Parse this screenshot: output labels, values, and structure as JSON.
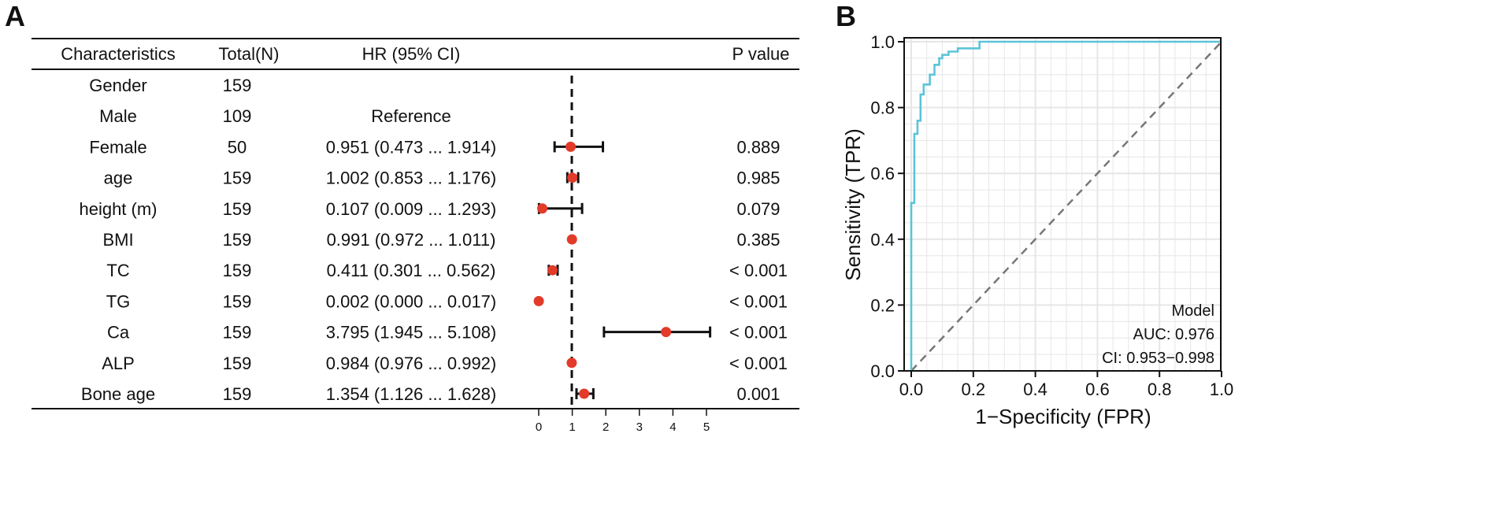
{
  "panel_a": {
    "letter": "A",
    "headers": {
      "characteristics": "Characteristics",
      "total": "Total(N)",
      "hr": "HR (95% CI)",
      "p": "P value"
    },
    "rows": [
      {
        "label": "Gender",
        "n": "159",
        "hr_text": "",
        "p": ""
      },
      {
        "label": "Male",
        "n": "109",
        "hr_text": "Reference",
        "p": ""
      },
      {
        "label": "Female",
        "n": "50",
        "hr_text": "0.951 (0.473 ... 1.914)",
        "p": "0.889"
      },
      {
        "label": "age",
        "n": "159",
        "hr_text": "1.002 (0.853 ... 1.176)",
        "p": "0.985"
      },
      {
        "label": "height (m)",
        "n": "159",
        "hr_text": "0.107 (0.009 ... 1.293)",
        "p": "0.079"
      },
      {
        "label": "BMI",
        "n": "159",
        "hr_text": "0.991 (0.972 ... 1.011)",
        "p": "0.385"
      },
      {
        "label": "TC",
        "n": "159",
        "hr_text": "0.411 (0.301 ... 0.562)",
        "p": "< 0.001"
      },
      {
        "label": "TG",
        "n": "159",
        "hr_text": "0.002 (0.000 ... 0.017)",
        "p": "< 0.001"
      },
      {
        "label": "Ca",
        "n": "159",
        "hr_text": "3.795 (1.945 ... 5.108)",
        "p": "< 0.001"
      },
      {
        "label": "ALP",
        "n": "159",
        "hr_text": "0.984 (0.976 ... 0.992)",
        "p": "< 0.001"
      },
      {
        "label": "Bone age",
        "n": "159",
        "hr_text": "1.354 (1.126 ... 1.628)",
        "p": "0.001"
      }
    ]
  },
  "panel_b": {
    "letter": "B",
    "legend": {
      "title": "Model",
      "auc": "AUC: 0.976",
      "ci": "CI: 0.953−0.998"
    }
  },
  "chart_data": [
    {
      "type": "forest",
      "title": "",
      "x_ticks": [
        0,
        1,
        2,
        3,
        4,
        5
      ],
      "x_tick_labels": [
        "0",
        "1",
        "2",
        "3",
        "4",
        "5"
      ],
      "xlim": [
        0,
        5
      ],
      "reference_line": 1,
      "categories": [
        "Gender",
        "Male",
        "Female",
        "age",
        "height (m)",
        "BMI",
        "TC",
        "TG",
        "Ca",
        "ALP",
        "Bone age"
      ],
      "hr": [
        null,
        null,
        0.951,
        1.002,
        0.107,
        0.991,
        0.411,
        0.002,
        3.795,
        0.984,
        1.354
      ],
      "ci_low": [
        null,
        null,
        0.473,
        0.853,
        0.009,
        0.972,
        0.301,
        0.0,
        1.945,
        0.976,
        1.126
      ],
      "ci_high": [
        null,
        null,
        1.914,
        1.176,
        1.293,
        1.011,
        0.562,
        0.017,
        5.108,
        0.992,
        1.628
      ],
      "point_color": "#e23b2a",
      "line_color": "#111111"
    },
    {
      "type": "line",
      "title": "",
      "xlabel": "1−Specificity (FPR)",
      "ylabel": "Sensitivity (TPR)",
      "xlim": [
        0,
        1
      ],
      "ylim": [
        0,
        1
      ],
      "x_ticks": [
        "0.0",
        "0.2",
        "0.4",
        "0.6",
        "0.8",
        "1.0"
      ],
      "y_ticks": [
        "0.0",
        "0.2",
        "0.4",
        "0.6",
        "0.8",
        "1.0"
      ],
      "grid": true,
      "legend_position": "bottom-right",
      "series": [
        {
          "name": "Model",
          "color": "#5bc4d9",
          "x": [
            0.0,
            0.0,
            0.01,
            0.01,
            0.02,
            0.02,
            0.03,
            0.03,
            0.04,
            0.04,
            0.06,
            0.06,
            0.075,
            0.075,
            0.09,
            0.09,
            0.1,
            0.1,
            0.12,
            0.12,
            0.15,
            0.15,
            0.22,
            0.22,
            1.0
          ],
          "y": [
            0.0,
            0.51,
            0.51,
            0.72,
            0.72,
            0.76,
            0.76,
            0.84,
            0.84,
            0.87,
            0.87,
            0.9,
            0.9,
            0.93,
            0.93,
            0.95,
            0.95,
            0.96,
            0.96,
            0.97,
            0.97,
            0.98,
            0.98,
            1.0,
            1.0
          ]
        },
        {
          "name": "Chance",
          "color": "#777777",
          "dashed": true,
          "x": [
            0,
            1
          ],
          "y": [
            0,
            1
          ]
        }
      ]
    }
  ]
}
